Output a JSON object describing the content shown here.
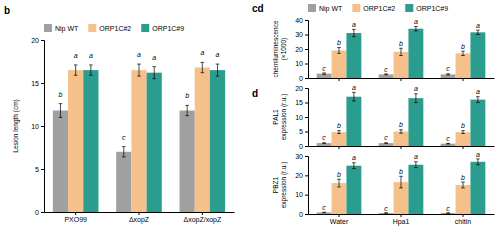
{
  "chart_data": [
    {
      "type": "bar",
      "title": "b",
      "categories": [
        "PXO99",
        "ΔxopZ",
        "ΔxopZ/xopZ"
      ],
      "series": [
        {
          "name": "Nip WT",
          "color": "#a0a0a0",
          "values": [
            11.8,
            7.0,
            11.8
          ],
          "errors": [
            0.8,
            0.6,
            0.6
          ],
          "letters": [
            "b",
            "c",
            "b"
          ]
        },
        {
          "name": "ORP1C#2",
          "color": "#f5c08a",
          "values": [
            16.5,
            16.5,
            16.8
          ],
          "errors": [
            0.6,
            0.7,
            0.6
          ],
          "letters": [
            "a",
            "a",
            "a"
          ]
        },
        {
          "name": "ORP1C#9",
          "color": "#2a9d8f",
          "values": [
            16.5,
            16.2,
            16.5
          ],
          "errors": [
            0.6,
            0.7,
            0.7
          ],
          "letters": [
            "a",
            "a",
            "a"
          ]
        }
      ],
      "y_label": "Lesion length (cm)",
      "ylim": [
        0,
        20
      ],
      "yticks": [
        0,
        5,
        10,
        15,
        20
      ],
      "legend": "upper left"
    },
    {
      "type": "bar",
      "title": "cd",
      "categories": [
        null,
        null,
        null
      ],
      "series": [
        {
          "name": "Nip WT",
          "color": "#a0a0a0",
          "values": [
            3.0,
            2.5,
            2.5
          ],
          "errors": [
            0.5,
            0.3,
            0.4
          ],
          "letters": [
            "c",
            "c",
            "c"
          ]
        },
        {
          "name": "ORP1C#2",
          "color": "#f5c08a",
          "values": [
            19.0,
            18.0,
            17.0
          ],
          "errors": [
            2.0,
            2.5,
            1.5
          ],
          "letters": [
            "b",
            "b",
            "b"
          ]
        },
        {
          "name": "ORP1C#9",
          "color": "#2a9d8f",
          "values": [
            31.0,
            34.0,
            31.5
          ],
          "errors": [
            2.5,
            1.5,
            1.5
          ],
          "letters": [
            "a",
            "a",
            "a"
          ]
        }
      ],
      "y_label": "chemiluminescence\n(×1000)",
      "ylim": [
        0,
        40
      ],
      "yticks": [
        0,
        10,
        20,
        30,
        40
      ],
      "legend": "upper left",
      "tick_labels": "y"
    },
    {
      "type": "bar",
      "title": "d",
      "categories": [
        null,
        null,
        null
      ],
      "series": [
        {
          "color": "#a0a0a0",
          "values": [
            1.0,
            1.0,
            0.8
          ],
          "errors": [
            0.1,
            0.1,
            0.1
          ],
          "letters": [
            "c",
            "c",
            "c"
          ]
        },
        {
          "color": "#f5c08a",
          "values": [
            4.8,
            5.0,
            4.8
          ],
          "errors": [
            0.5,
            0.6,
            0.5
          ],
          "letters": [
            "b",
            "b",
            "b"
          ]
        },
        {
          "color": "#2a9d8f",
          "values": [
            17.0,
            16.5,
            16.0
          ],
          "errors": [
            1.5,
            1.5,
            1.0
          ],
          "letters": [
            "a",
            "a",
            "a"
          ]
        }
      ],
      "y_label": "PAL1\nexpression (r.u.)",
      "ylim": [
        0,
        20
      ],
      "yticks": [
        0,
        5,
        10,
        15,
        20
      ],
      "tick_labels": "y"
    },
    {
      "type": "bar",
      "categories": [
        "Water",
        "Hpa1",
        "chitin"
      ],
      "series": [
        {
          "color": "#a0a0a0",
          "values": [
            0.8,
            0.5,
            0.5
          ],
          "errors": [
            0.1,
            0.1,
            0.1
          ],
          "letters": [
            "c",
            "c",
            "c"
          ]
        },
        {
          "color": "#f5c08a",
          "values": [
            16.0,
            16.5,
            15.0
          ],
          "errors": [
            2.0,
            3.0,
            1.5
          ],
          "letters": [
            "b",
            "b",
            "b"
          ]
        },
        {
          "color": "#2a9d8f",
          "values": [
            25.0,
            25.5,
            27.0
          ],
          "errors": [
            1.5,
            1.5,
            1.5
          ],
          "letters": [
            "a",
            "a",
            "a"
          ]
        }
      ],
      "y_label": "PBZ1\nexpression (r.u.)",
      "ylim": [
        0,
        30
      ],
      "yticks": [
        0,
        10,
        20,
        30
      ]
    }
  ]
}
